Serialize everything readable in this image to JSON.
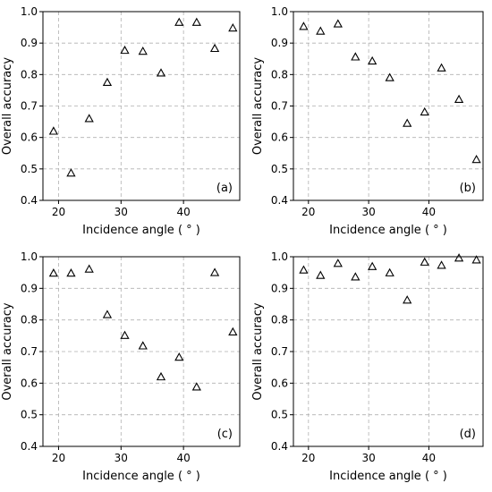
{
  "chart_data": [
    {
      "type": "scatter",
      "panel_label": "(a)",
      "xlabel": "Incidence angle ( ° )",
      "ylabel": "Overall accuracy",
      "xlim": [
        17.5,
        49
      ],
      "ylim": [
        0.4,
        1.0
      ],
      "xticks": [
        20,
        30,
        40
      ],
      "yticks": [
        0.4,
        0.5,
        0.6,
        0.7,
        0.8,
        0.9,
        1.0
      ],
      "ytick_labels": [
        "0.4",
        "0.5",
        "0.6",
        "0.7",
        "0.8",
        "0.9",
        "1.0"
      ],
      "grid": true,
      "marker": "triangle",
      "x": [
        19.2,
        22.0,
        24.9,
        27.8,
        30.6,
        33.5,
        36.4,
        39.3,
        42.1,
        45.0,
        47.9
      ],
      "y": [
        0.62,
        0.487,
        0.66,
        0.775,
        0.877,
        0.874,
        0.805,
        0.966,
        0.966,
        0.883,
        0.948
      ]
    },
    {
      "type": "scatter",
      "panel_label": "(b)",
      "xlabel": "Incidence angle ( ° )",
      "ylabel": "Overall accuracy",
      "xlim": [
        17.5,
        49
      ],
      "ylim": [
        0.4,
        1.0
      ],
      "xticks": [
        20,
        30,
        40
      ],
      "yticks": [
        0.4,
        0.5,
        0.6,
        0.7,
        0.8,
        0.9,
        1.0
      ],
      "ytick_labels": [
        "0.4",
        "0.5",
        "0.6",
        "0.7",
        "0.8",
        "0.9",
        "1.0"
      ],
      "grid": true,
      "marker": "triangle",
      "x": [
        19.2,
        22.0,
        24.9,
        27.8,
        30.6,
        33.5,
        36.4,
        39.3,
        42.1,
        45.0,
        47.9
      ],
      "y": [
        0.953,
        0.938,
        0.961,
        0.856,
        0.843,
        0.79,
        0.645,
        0.681,
        0.821,
        0.721,
        0.53
      ]
    },
    {
      "type": "scatter",
      "panel_label": "(c)",
      "xlabel": "Incidence angle ( ° )",
      "ylabel": "Overall accuracy",
      "xlim": [
        17.5,
        49
      ],
      "ylim": [
        0.4,
        1.0
      ],
      "xticks": [
        20,
        30,
        40
      ],
      "yticks": [
        0.4,
        0.5,
        0.6,
        0.7,
        0.8,
        0.9,
        1.0
      ],
      "ytick_labels": [
        "0.4",
        "0.5",
        "0.6",
        "0.7",
        "0.8",
        "0.9",
        "1.0"
      ],
      "grid": true,
      "marker": "triangle",
      "x": [
        19.2,
        22.0,
        24.9,
        27.8,
        30.6,
        33.5,
        36.4,
        39.3,
        42.1,
        45.0,
        47.9
      ],
      "y": [
        0.948,
        0.948,
        0.961,
        0.817,
        0.751,
        0.718,
        0.62,
        0.682,
        0.588,
        0.95,
        0.762
      ]
    },
    {
      "type": "scatter",
      "panel_label": "(d)",
      "xlabel": "Incidence angle ( ° )",
      "ylabel": "Overall accuracy",
      "xlim": [
        17.5,
        49
      ],
      "ylim": [
        0.4,
        1.0
      ],
      "xticks": [
        20,
        30,
        40
      ],
      "yticks": [
        0.4,
        0.5,
        0.6,
        0.7,
        0.8,
        0.9,
        1.0
      ],
      "ytick_labels": [
        "0.4",
        "0.5",
        "0.6",
        "0.7",
        "0.8",
        "0.9",
        "1.0"
      ],
      "grid": true,
      "marker": "triangle",
      "x": [
        19.2,
        22.0,
        24.9,
        27.8,
        30.6,
        33.5,
        36.4,
        39.3,
        42.1,
        45.0,
        47.9
      ],
      "y": [
        0.958,
        0.941,
        0.979,
        0.936,
        0.969,
        0.949,
        0.863,
        0.983,
        0.973,
        0.996,
        0.99
      ]
    }
  ]
}
